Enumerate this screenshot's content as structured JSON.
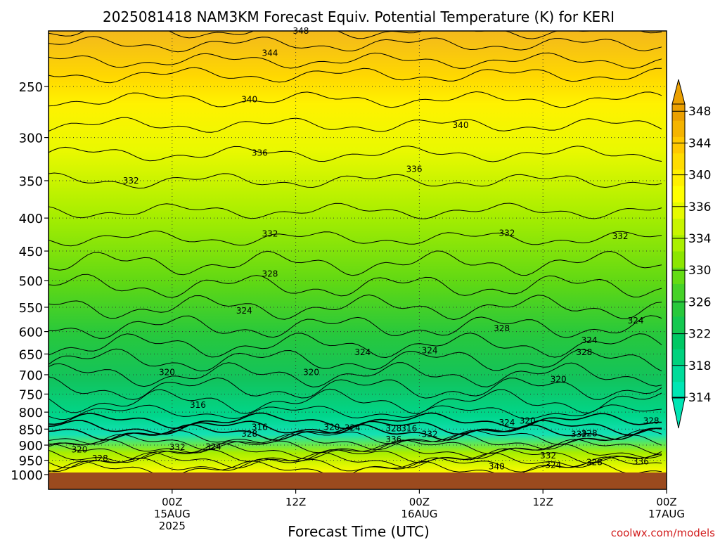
{
  "chart_data": {
    "type": "heatmap",
    "title": "2025081418 NAM3KM Forecast Equiv. Potential Temperature (K) for KERI",
    "xlabel": "Forecast Time (UTC)",
    "ylabel": "",
    "y_scale": "log-pressure",
    "y_ticks": [
      250,
      300,
      350,
      400,
      450,
      500,
      550,
      600,
      650,
      700,
      750,
      800,
      850,
      900,
      950,
      1000
    ],
    "ylim": [
      1000,
      200
    ],
    "x_range_hours": [
      -6,
      54
    ],
    "x_ticks": [
      {
        "hour": 6,
        "line1": "00Z",
        "line2": "15AUG",
        "line3": "2025"
      },
      {
        "hour": 18,
        "line1": "12Z",
        "line2": "",
        "line3": ""
      },
      {
        "hour": 30,
        "line1": "00Z",
        "line2": "16AUG",
        "line3": ""
      },
      {
        "hour": 42,
        "line1": "12Z",
        "line2": "",
        "line3": ""
      },
      {
        "hour": 54,
        "line1": "00Z",
        "line2": "17AUG",
        "line3": ""
      }
    ],
    "colorbar": {
      "ticks": [
        314,
        318,
        322,
        326,
        330,
        334,
        336,
        340,
        344,
        348
      ],
      "levels": [
        314,
        316,
        318,
        320,
        322,
        324,
        326,
        328,
        330,
        332,
        334,
        336,
        338,
        340,
        342,
        344,
        346,
        348,
        350
      ],
      "colors": [
        "#00e6b4",
        "#00dc9a",
        "#00d27e",
        "#00c864",
        "#14c850",
        "#28c83c",
        "#46d228",
        "#64dc14",
        "#8ce600",
        "#aaf000",
        "#c8f500",
        "#e6fa00",
        "#ffff00",
        "#fff000",
        "#ffdc00",
        "#ffc800",
        "#f5b400",
        "#eba000"
      ]
    },
    "contour_labels": [
      {
        "text": "348",
        "t": 18.5,
        "p": 205
      },
      {
        "text": "344",
        "t": 15.5,
        "p": 222
      },
      {
        "text": "340",
        "t": 13.5,
        "p": 262
      },
      {
        "text": "340",
        "t": 34.0,
        "p": 287
      },
      {
        "text": "336",
        "t": 14.5,
        "p": 317
      },
      {
        "text": "336",
        "t": 29.5,
        "p": 336
      },
      {
        "text": "332",
        "t": 2.0,
        "p": 350
      },
      {
        "text": "332",
        "t": 15.5,
        "p": 423
      },
      {
        "text": "332",
        "t": 38.5,
        "p": 422
      },
      {
        "text": "332",
        "t": 49.5,
        "p": 427
      },
      {
        "text": "328",
        "t": 15.5,
        "p": 488
      },
      {
        "text": "328",
        "t": 38.0,
        "p": 593
      },
      {
        "text": "328",
        "t": 46.0,
        "p": 646
      },
      {
        "text": "324",
        "t": 13.0,
        "p": 557
      },
      {
        "text": "324",
        "t": 24.5,
        "p": 646
      },
      {
        "text": "324",
        "t": 31.0,
        "p": 642
      },
      {
        "text": "324",
        "t": 46.5,
        "p": 619
      },
      {
        "text": "324",
        "t": 51.0,
        "p": 577
      },
      {
        "text": "320",
        "t": 5.5,
        "p": 694
      },
      {
        "text": "320",
        "t": 19.5,
        "p": 694
      },
      {
        "text": "320",
        "t": 43.5,
        "p": 712
      },
      {
        "text": "316",
        "t": 8.5,
        "p": 780
      },
      {
        "text": "316",
        "t": 14.5,
        "p": 844
      },
      {
        "text": "316",
        "t": 29.0,
        "p": 848
      },
      {
        "text": "320",
        "t": 21.5,
        "p": 844
      },
      {
        "text": "320",
        "t": 40.5,
        "p": 825
      },
      {
        "text": "324",
        "t": 23.5,
        "p": 846
      },
      {
        "text": "324",
        "t": 38.5,
        "p": 830
      },
      {
        "text": "328",
        "t": 13.5,
        "p": 864
      },
      {
        "text": "328",
        "t": 27.5,
        "p": 848
      },
      {
        "text": "328",
        "t": 46.5,
        "p": 863
      },
      {
        "text": "328",
        "t": 52.5,
        "p": 825
      },
      {
        "text": "332",
        "t": 31.0,
        "p": 866
      },
      {
        "text": "332",
        "t": 45.5,
        "p": 866
      },
      {
        "text": "336",
        "t": 27.5,
        "p": 882
      },
      {
        "text": "332",
        "t": 6.5,
        "p": 907
      },
      {
        "text": "324",
        "t": 10.0,
        "p": 905
      },
      {
        "text": "320",
        "t": -3.0,
        "p": 915
      },
      {
        "text": "328",
        "t": -1.0,
        "p": 944
      },
      {
        "text": "332",
        "t": 42.5,
        "p": 935
      },
      {
        "text": "324",
        "t": 43.0,
        "p": 967
      },
      {
        "text": "328",
        "t": 47.0,
        "p": 957
      },
      {
        "text": "336",
        "t": 51.5,
        "p": 955
      },
      {
        "text": "340",
        "t": 37.5,
        "p": 972
      }
    ]
  },
  "credit": "coolwx.com/models"
}
